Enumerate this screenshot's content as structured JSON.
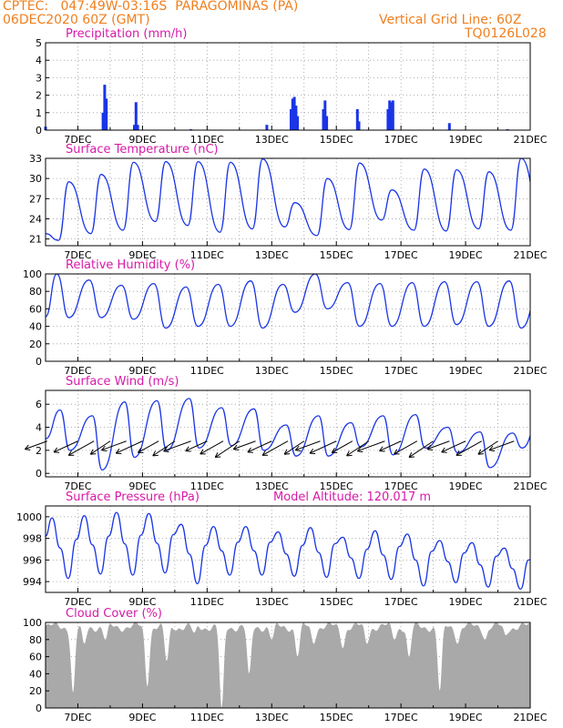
{
  "header": {
    "source": "CPTEC:",
    "coords": "047:49W-03:16S",
    "station": "PARAGOMINAS (PA)",
    "run": "06DEC2020 60Z (GMT)",
    "grid_note": "Vertical Grid Line: 60Z",
    "code": "TQ0126L028"
  },
  "colors": {
    "header": "#f07f1f",
    "title": "#d61aa8",
    "series": "#1a35e6",
    "cloud": "#a9a9a9",
    "grid": "#9a9a9a"
  },
  "chart_data": [
    {
      "type": "bar",
      "title": "Precipitation (mm/h)",
      "x_ticks": [
        "7DEC",
        "9DEC",
        "11DEC",
        "13DEC",
        "15DEC",
        "17DEC",
        "19DEC",
        "21DEC"
      ],
      "x_range_days": [
        6.0,
        21.0
      ],
      "ylim": [
        0,
        5
      ],
      "y_ticks": [
        0,
        1,
        2,
        3,
        4,
        5
      ],
      "events": [
        {
          "t": 7.78,
          "v": 1.0
        },
        {
          "t": 7.83,
          "v": 2.6
        },
        {
          "t": 7.88,
          "v": 1.8
        },
        {
          "t": 8.75,
          "v": 0.3
        },
        {
          "t": 8.8,
          "v": 1.6
        },
        {
          "t": 8.85,
          "v": 0.3
        },
        {
          "t": 12.85,
          "v": 0.3
        },
        {
          "t": 13.6,
          "v": 1.2
        },
        {
          "t": 13.65,
          "v": 1.8
        },
        {
          "t": 13.7,
          "v": 1.9
        },
        {
          "t": 13.75,
          "v": 1.4
        },
        {
          "t": 13.8,
          "v": 0.8
        },
        {
          "t": 14.6,
          "v": 1.2
        },
        {
          "t": 14.65,
          "v": 1.7
        },
        {
          "t": 14.7,
          "v": 0.8
        },
        {
          "t": 15.65,
          "v": 1.2
        },
        {
          "t": 15.7,
          "v": 0.5
        },
        {
          "t": 16.6,
          "v": 1.2
        },
        {
          "t": 16.65,
          "v": 1.7
        },
        {
          "t": 16.7,
          "v": 1.6
        },
        {
          "t": 16.75,
          "v": 1.7
        },
        {
          "t": 18.5,
          "v": 0.4
        },
        {
          "t": 6.0,
          "v": 0.2
        },
        {
          "t": 10.5,
          "v": 0.05
        },
        {
          "t": 20.3,
          "v": 0.05
        }
      ]
    },
    {
      "type": "line",
      "title": "Surface Temperature (nC)",
      "x_ticks": [
        "7DEC",
        "9DEC",
        "11DEC",
        "13DEC",
        "15DEC",
        "17DEC",
        "19DEC",
        "21DEC"
      ],
      "ylim": [
        20,
        33
      ],
      "y_ticks": [
        21,
        24,
        27,
        30,
        33
      ],
      "daily_max": [
        29.5,
        30.6,
        32.4,
        32.5,
        32.5,
        32.4,
        32.9,
        26.4,
        30.0,
        32.3,
        28.3,
        31.4,
        31.3,
        31.0,
        33.0,
        32.6
      ],
      "daily_min": [
        20.8,
        21.8,
        22.3,
        23.6,
        23.0,
        22.0,
        22.5,
        22.8,
        21.5,
        22.4,
        23.8,
        22.3,
        22.2,
        22.5,
        22.3,
        22.5
      ],
      "end_value": 27.9
    },
    {
      "type": "line",
      "title": "Relative Humidity (%)",
      "x_ticks": [
        "7DEC",
        "9DEC",
        "11DEC",
        "13DEC",
        "15DEC",
        "17DEC",
        "19DEC",
        "21DEC"
      ],
      "ylim": [
        0,
        100
      ],
      "y_ticks": [
        0,
        20,
        40,
        60,
        80,
        100
      ],
      "daily_max": [
        100,
        93,
        87,
        89,
        85,
        88,
        92,
        88,
        100,
        90,
        89,
        90,
        91,
        91,
        92,
        88
      ],
      "daily_min": [
        50,
        50,
        48,
        38,
        40,
        40,
        38,
        56,
        60,
        40,
        40,
        40,
        42,
        40,
        38,
        40
      ],
      "end_value": 58
    },
    {
      "type": "line",
      "title": "Surface Wind (m/s)",
      "x_ticks": [
        "7DEC",
        "9DEC",
        "11DEC",
        "13DEC",
        "15DEC",
        "17DEC",
        "19DEC",
        "21DEC"
      ],
      "ylim": [
        -0.3,
        7.2
      ],
      "y_ticks": [
        0,
        2,
        4,
        6
      ],
      "daily_max": [
        5.5,
        5.0,
        6.2,
        6.3,
        6.5,
        5.7,
        5.6,
        4.2,
        5.0,
        4.4,
        5.0,
        5.1,
        4.0,
        3.6,
        3.5,
        6.6
      ],
      "daily_min": [
        2.0,
        0.3,
        1.4,
        2.0,
        2.2,
        2.4,
        2.0,
        1.5,
        1.5,
        2.3,
        1.6,
        2.2,
        1.8,
        0.5,
        2.2,
        2.3
      ],
      "arrow_days": [
        6.05,
        7.0,
        7.5,
        8.0,
        8.5,
        9.0,
        9.5,
        10.0,
        10.5,
        11.0,
        11.5,
        12.0,
        12.5,
        13.0,
        13.5,
        14.0,
        14.5,
        15.0,
        15.5,
        16.0,
        16.5,
        17.0,
        17.5,
        18.0,
        18.5,
        19.0,
        19.5,
        20.0,
        20.5
      ]
    },
    {
      "type": "line",
      "title": "Surface Pressure (hPa)",
      "annotation": "Model Altitude: 120.017 m",
      "x_ticks": [
        "7DEC",
        "9DEC",
        "11DEC",
        "13DEC",
        "15DEC",
        "17DEC",
        "19DEC",
        "21DEC"
      ],
      "ylim": [
        993.0,
        1001.0
      ],
      "y_ticks": [
        994,
        996,
        998,
        1000
      ],
      "daily_max": [
        999.9,
        1000.1,
        1000.4,
        1000.3,
        999.3,
        999.1,
        999.1,
        998.6,
        999.0,
        998.1,
        998.7,
        998.4,
        997.8,
        997.6,
        997.1,
        996.6
      ],
      "daily_min": [
        994.3,
        994.7,
        994.6,
        994.8,
        993.8,
        994.6,
        994.6,
        994.5,
        994.4,
        994.3,
        994.2,
        993.6,
        993.9,
        993.5,
        993.3,
        993.4
      ],
      "start_value": 998.2
    },
    {
      "type": "area",
      "title": "Cloud Cover (%)",
      "x_ticks": [
        "7DEC",
        "9DEC",
        "11DEC",
        "13DEC",
        "15DEC",
        "17DEC",
        "19DEC",
        "21DEC"
      ],
      "ylim": [
        0,
        100
      ],
      "y_ticks": [
        0,
        20,
        40,
        60,
        80,
        100
      ],
      "base_level": 95,
      "dips": [
        {
          "t": 6.85,
          "v": 18
        },
        {
          "t": 7.2,
          "v": 75
        },
        {
          "t": 7.85,
          "v": 80
        },
        {
          "t": 9.15,
          "v": 25
        },
        {
          "t": 9.75,
          "v": 55
        },
        {
          "t": 10.6,
          "v": 88
        },
        {
          "t": 11.45,
          "v": 0
        },
        {
          "t": 12.3,
          "v": 40
        },
        {
          "t": 13.0,
          "v": 80
        },
        {
          "t": 13.8,
          "v": 60
        },
        {
          "t": 14.3,
          "v": 75
        },
        {
          "t": 15.2,
          "v": 70
        },
        {
          "t": 15.95,
          "v": 75
        },
        {
          "t": 16.8,
          "v": 80
        },
        {
          "t": 17.25,
          "v": 60
        },
        {
          "t": 18.2,
          "v": 20
        },
        {
          "t": 18.75,
          "v": 75
        },
        {
          "t": 19.6,
          "v": 80
        },
        {
          "t": 20.25,
          "v": 85
        }
      ]
    }
  ]
}
